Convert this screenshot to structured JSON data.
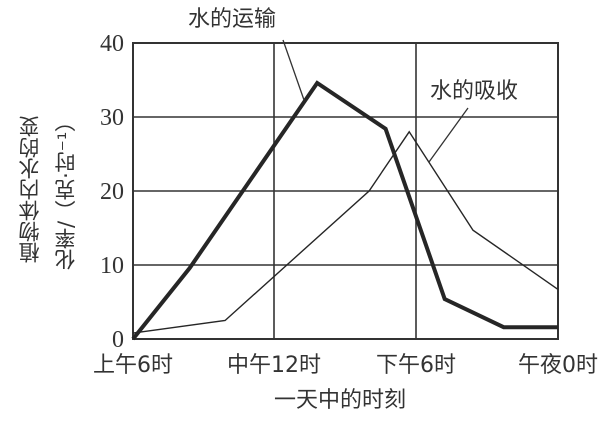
{
  "chart_data": {
    "type": "line",
    "title": "",
    "xlabel": "一天中的时刻",
    "ylabel_line1": "植物体内水的变",
    "ylabel_line2": "化率/（克·时⁻¹）",
    "ylim": [
      0,
      40
    ],
    "yticks": [
      "0",
      "10",
      "20",
      "30",
      "40"
    ],
    "xticks": [
      "上午6时",
      "中午12时",
      "下午6时",
      "午夜0时"
    ],
    "x_hours_range": [
      6,
      24
    ],
    "grid": true,
    "series": [
      {
        "name": "水的运输",
        "style": "thick",
        "points": [
          [
            6,
            0
          ],
          [
            8.4,
            9.6
          ],
          [
            13.8,
            34.6
          ],
          [
            16.7,
            28.4
          ],
          [
            19.2,
            5.4
          ],
          [
            21.7,
            1.6
          ],
          [
            24,
            1.6
          ]
        ]
      },
      {
        "name": "水的吸收",
        "style": "thin",
        "points": [
          [
            6,
            0.8
          ],
          [
            9.9,
            2.5
          ],
          [
            16.0,
            20.0
          ],
          [
            17.7,
            28.0
          ],
          [
            20.4,
            14.7
          ],
          [
            24,
            6.7
          ]
        ]
      }
    ],
    "annotations": [
      {
        "text": "水的运输",
        "points_to": "水的运输"
      },
      {
        "text": "水的吸收",
        "points_to": "水的吸收"
      }
    ]
  }
}
